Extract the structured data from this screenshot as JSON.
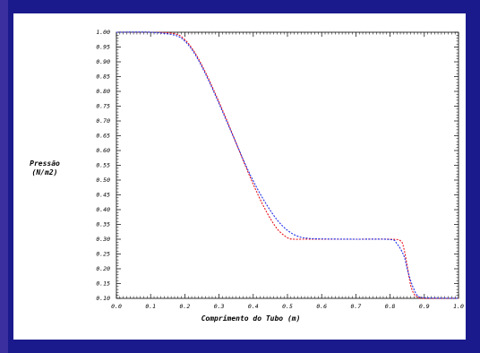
{
  "chart_data": {
    "type": "line",
    "xlabel": "Comprimento do Tubo (m)",
    "ylabel": [
      "Pressão",
      "(N/m2)"
    ],
    "xlim": [
      0.0,
      1.0
    ],
    "ylim": [
      0.1,
      1.0
    ],
    "x_ticks": [
      "0.0",
      "0.1",
      "0.2",
      "0.3",
      "0.4",
      "0.5",
      "0.6",
      "0.7",
      "0.8",
      "0.9",
      "1.0"
    ],
    "y_ticks": [
      "0.10",
      "0.15",
      "0.20",
      "0.25",
      "0.30",
      "0.35",
      "0.40",
      "0.45",
      "0.50",
      "0.55",
      "0.60",
      "0.65",
      "0.70",
      "0.75",
      "0.80",
      "0.85",
      "0.90",
      "0.95",
      "1.00"
    ],
    "grid": false,
    "series": [
      {
        "color": "#e8141c",
        "dash": "2,1.5",
        "x": [
          0.0,
          0.1,
          0.17,
          0.2,
          0.23,
          0.26,
          0.29,
          0.32,
          0.35,
          0.38,
          0.41,
          0.44,
          0.47,
          0.5,
          0.52,
          0.54,
          0.56,
          0.6,
          0.7,
          0.8,
          0.83,
          0.84,
          0.85,
          0.86,
          0.87,
          0.88,
          0.9,
          1.0
        ],
        "y": [
          1.0,
          1.0,
          0.995,
          0.975,
          0.93,
          0.865,
          0.79,
          0.71,
          0.625,
          0.54,
          0.46,
          0.39,
          0.335,
          0.305,
          0.3,
          0.3,
          0.3,
          0.3,
          0.3,
          0.3,
          0.295,
          0.27,
          0.21,
          0.145,
          0.115,
          0.105,
          0.1,
          0.1
        ]
      },
      {
        "color": "#1e2ee6",
        "dash": "2,1.5",
        "x": [
          0.0,
          0.1,
          0.17,
          0.2,
          0.23,
          0.26,
          0.29,
          0.32,
          0.35,
          0.38,
          0.41,
          0.44,
          0.47,
          0.5,
          0.53,
          0.56,
          0.6,
          0.7,
          0.8,
          0.82,
          0.84,
          0.85,
          0.86,
          0.87,
          0.88,
          0.9,
          1.0
        ],
        "y": [
          1.0,
          1.0,
          0.99,
          0.97,
          0.925,
          0.86,
          0.785,
          0.705,
          0.625,
          0.545,
          0.475,
          0.415,
          0.365,
          0.33,
          0.31,
          0.303,
          0.301,
          0.3,
          0.299,
          0.285,
          0.245,
          0.2,
          0.16,
          0.13,
          0.11,
          0.102,
          0.1
        ]
      }
    ]
  }
}
